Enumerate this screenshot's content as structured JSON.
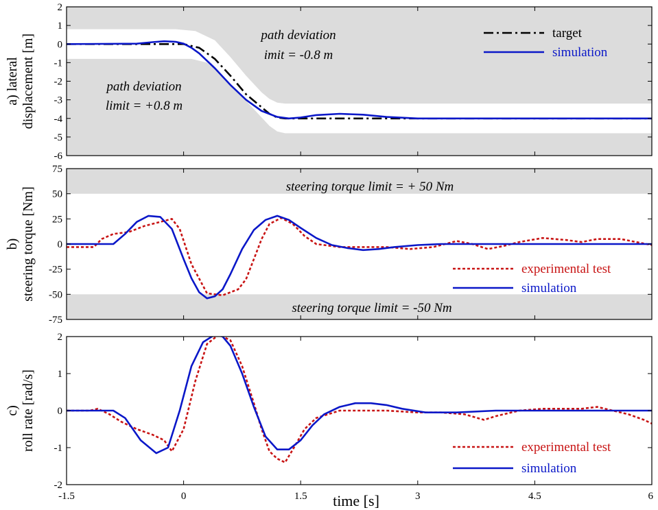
{
  "xlabel": "time [s]",
  "xticks": [
    "-1.5",
    "0",
    "1.5",
    "3",
    "4.5",
    "6"
  ],
  "colors": {
    "band": "#dcdcdc",
    "target": "#000000",
    "simulation": "#0a17c8",
    "experimental": "#c81414"
  },
  "chart_data": [
    {
      "id": "a",
      "type": "line",
      "ylabel": [
        "a) lateral",
        "displacement [m]"
      ],
      "xlim": [
        -1.5,
        6
      ],
      "ylim": [
        -6,
        2
      ],
      "yticks": [
        "2",
        "1",
        "0",
        "-1",
        "-2",
        "-3",
        "-4",
        "-5",
        "-6"
      ],
      "annotations": [
        [
          "path deviation",
          "limit = +0.8 m"
        ],
        [
          "path deviation",
          "imit = -0.8 m"
        ]
      ],
      "series": [
        {
          "name": "target",
          "x": [
            -1.5,
            -0.25,
            0,
            0.2,
            0.4,
            0.6,
            0.8,
            1.0,
            1.1,
            1.2,
            1.3,
            1.5,
            2,
            3,
            4.5,
            6
          ],
          "y": [
            0,
            0,
            0,
            -0.2,
            -0.8,
            -1.7,
            -2.7,
            -3.4,
            -3.75,
            -3.95,
            -4,
            -4,
            -4,
            -4,
            -4,
            -4
          ]
        },
        {
          "name": "simulation",
          "x": [
            -1.5,
            -0.6,
            -0.4,
            -0.25,
            -0.1,
            0,
            0.1,
            0.2,
            0.4,
            0.6,
            0.8,
            1.0,
            1.2,
            1.35,
            1.5,
            1.7,
            2.0,
            2.3,
            2.6,
            3.0,
            3.5,
            4.5,
            6
          ],
          "y": [
            0,
            0.02,
            0.1,
            0.15,
            0.12,
            0.02,
            -0.2,
            -0.5,
            -1.3,
            -2.2,
            -3.0,
            -3.6,
            -3.92,
            -4.0,
            -3.95,
            -3.82,
            -3.75,
            -3.8,
            -3.92,
            -4.0,
            -4.0,
            -4.0,
            -4.0
          ]
        }
      ],
      "bands": {
        "upper": {
          "x": [
            -1.5,
            -0.1,
            0.15,
            0.4,
            0.6,
            0.8,
            1.0,
            1.1,
            1.2,
            1.3,
            1.5,
            6
          ],
          "y": [
            0.8,
            0.8,
            0.7,
            0.2,
            -0.7,
            -1.7,
            -2.6,
            -2.95,
            -3.15,
            -3.2,
            -3.2,
            -3.2
          ]
        },
        "lower": {
          "x": [
            -1.5,
            0.1,
            0.3,
            0.5,
            0.7,
            0.9,
            1.1,
            1.2,
            1.3,
            1.4,
            1.5,
            6
          ],
          "y": [
            -0.8,
            -0.8,
            -1.0,
            -1.7,
            -2.6,
            -3.5,
            -4.4,
            -4.7,
            -4.8,
            -4.8,
            -4.8,
            -4.8
          ]
        }
      }
    },
    {
      "id": "b",
      "type": "line",
      "ylabel": [
        "b)",
        "steering torque [Nm]"
      ],
      "xlim": [
        -1.5,
        6
      ],
      "ylim": [
        -75,
        75
      ],
      "yticks": [
        "75",
        "50",
        "25",
        "0",
        "-25",
        "-50",
        "-75"
      ],
      "limit_bands": [
        50,
        -50
      ],
      "annotations": [
        "steering torque limit = + 50 Nm",
        "steering torque limit = -50 Nm"
      ],
      "series": [
        {
          "name": "experimental test",
          "x": [
            -1.5,
            -1.15,
            -1.05,
            -0.9,
            -0.7,
            -0.5,
            -0.3,
            -0.15,
            -0.05,
            0.1,
            0.3,
            0.5,
            0.7,
            0.8,
            0.9,
            1.0,
            1.1,
            1.25,
            1.4,
            1.55,
            1.7,
            2.0,
            2.3,
            2.6,
            2.9,
            3.2,
            3.5,
            3.7,
            3.9,
            4.1,
            4.3,
            4.6,
            4.9,
            5.1,
            5.3,
            5.6,
            5.8,
            6.0
          ],
          "y": [
            -3,
            -3,
            5,
            10,
            12,
            18,
            22,
            25,
            15,
            -20,
            -49,
            -51,
            -45,
            -35,
            -15,
            5,
            20,
            26,
            20,
            8,
            0,
            -3,
            -3,
            -3,
            -5,
            -3,
            3,
            0,
            -5,
            -2,
            2,
            6,
            4,
            2,
            5,
            5,
            2,
            -1
          ]
        },
        {
          "name": "simulation",
          "x": [
            -1.5,
            -0.9,
            -0.75,
            -0.6,
            -0.45,
            -0.3,
            -0.15,
            0,
            0.1,
            0.2,
            0.3,
            0.4,
            0.5,
            0.6,
            0.75,
            0.9,
            1.05,
            1.2,
            1.35,
            1.5,
            1.7,
            1.9,
            2.1,
            2.3,
            2.5,
            2.7,
            3.0,
            3.3,
            3.6,
            4.0,
            6.0
          ],
          "y": [
            0,
            0,
            10,
            22,
            28,
            27,
            15,
            -15,
            -34,
            -48,
            -54,
            -52,
            -45,
            -30,
            -5,
            14,
            24,
            28,
            24,
            16,
            6,
            -1,
            -4,
            -6,
            -5,
            -3,
            -1,
            0,
            0,
            0,
            0
          ]
        }
      ]
    },
    {
      "id": "c",
      "type": "line",
      "ylabel": [
        "c)",
        "roll rate [rad/s]"
      ],
      "xlim": [
        -1.5,
        6
      ],
      "ylim": [
        -2,
        2
      ],
      "yticks": [
        "2",
        "1",
        "0",
        "-1",
        "-2"
      ],
      "series": [
        {
          "name": "experimental test",
          "x": [
            -1.5,
            -1.2,
            -1.1,
            -0.95,
            -0.8,
            -0.6,
            -0.4,
            -0.25,
            -0.15,
            0.0,
            0.15,
            0.3,
            0.45,
            0.6,
            0.75,
            0.9,
            1.0,
            1.1,
            1.2,
            1.3,
            1.4,
            1.55,
            1.7,
            2.0,
            2.3,
            2.6,
            3.0,
            3.3,
            3.6,
            3.85,
            4.0,
            4.3,
            4.6,
            4.9,
            5.1,
            5.3,
            5.5,
            5.7,
            5.9,
            6.0
          ],
          "y": [
            0,
            0,
            0.05,
            -0.1,
            -0.3,
            -0.5,
            -0.65,
            -0.8,
            -1.1,
            -0.5,
            0.8,
            1.8,
            2.05,
            1.9,
            1.2,
            0.2,
            -0.5,
            -1.1,
            -1.3,
            -1.4,
            -1.05,
            -0.5,
            -0.2,
            0,
            0.0,
            0.0,
            -0.05,
            -0.05,
            -0.1,
            -0.25,
            -0.15,
            0.0,
            0.05,
            0.05,
            0.05,
            0.1,
            0.0,
            -0.1,
            -0.25,
            -0.35
          ]
        },
        {
          "name": "simulation",
          "x": [
            -1.5,
            -0.9,
            -0.75,
            -0.55,
            -0.35,
            -0.2,
            -0.05,
            0.1,
            0.25,
            0.4,
            0.5,
            0.6,
            0.75,
            0.9,
            1.05,
            1.2,
            1.35,
            1.5,
            1.65,
            1.8,
            2.0,
            2.2,
            2.4,
            2.6,
            2.8,
            3.1,
            3.5,
            4.0,
            6.0
          ],
          "y": [
            0,
            0,
            -0.2,
            -0.8,
            -1.15,
            -1.0,
            0.0,
            1.2,
            1.85,
            2.05,
            2.0,
            1.75,
            1.0,
            0.1,
            -0.7,
            -1.05,
            -1.05,
            -0.8,
            -0.4,
            -0.1,
            0.1,
            0.2,
            0.2,
            0.15,
            0.05,
            -0.05,
            -0.05,
            0.0,
            0.0
          ]
        }
      ]
    }
  ]
}
